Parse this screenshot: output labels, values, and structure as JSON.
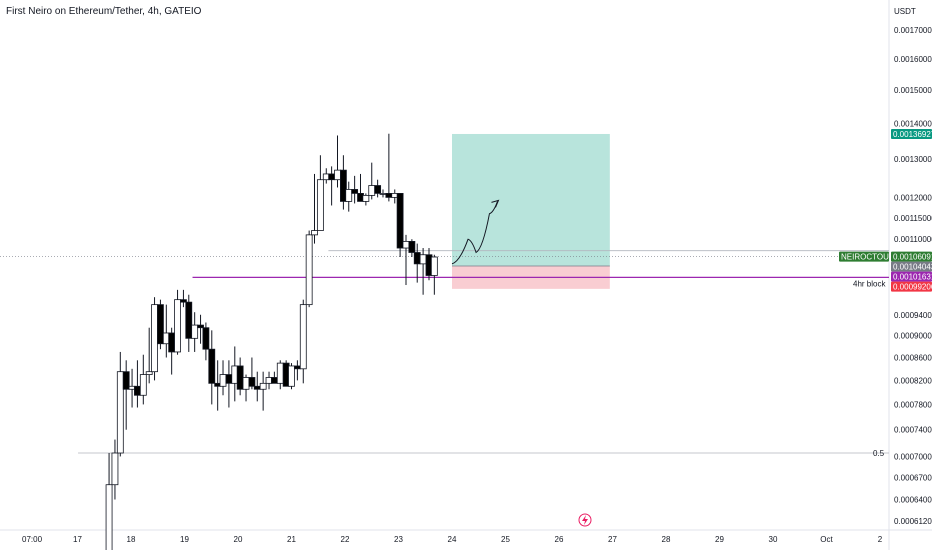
{
  "title": "First Neiro on Ethereum/Tether, 4h, GATEIO",
  "colors": {
    "up_fill": "#ffffff",
    "down_fill": "#000000",
    "wick": "#131722",
    "target_zone": "#b8e4dc",
    "stop_zone": "#f9cdd2",
    "horizontal_level": "#9c27b0",
    "fib_line": "#b2b5be",
    "grid_border": "#e0e3eb",
    "price_tag_green": "#2e7d32",
    "price_tag_teal": "#089981",
    "price_tag_purple": "#9c27b0",
    "price_tag_red": "#f23645",
    "price_tag_gray": "#787b86"
  },
  "chart_data": {
    "type": "candlestick",
    "currency": "USDT",
    "scale": "log",
    "y_range": [
      0.00059,
      0.00175
    ],
    "y_ticks": [
      "0.00170000",
      "0.00160000",
      "0.00150000",
      "0.00140000",
      "0.00130000",
      "0.00120000",
      "0.00115000",
      "0.00110000",
      "0.00094000",
      "0.00090000",
      "0.00086000",
      "0.00082000",
      "0.00078000",
      "0.00074000",
      "0.00070000",
      "0.00067000",
      "0.00064000",
      "0.00061200"
    ],
    "x_labels": [
      "07:00",
      "17",
      "18",
      "19",
      "20",
      "21",
      "22",
      "23",
      "24",
      "25",
      "26",
      "27",
      "28",
      "29",
      "30",
      "Oct",
      "2"
    ],
    "x_domain": [
      -1.1,
      8.95
    ],
    "grid": false,
    "candles": [
      {
        "t": -0.41,
        "o": 0.000575,
        "h": 0.000705,
        "l": 0.000575,
        "c": 0.00066
      },
      {
        "t": -0.3,
        "o": 0.00066,
        "h": 0.000725,
        "l": 0.00064,
        "c": 0.000705
      },
      {
        "t": -0.2,
        "o": 0.000705,
        "h": 0.00087,
        "l": 0.0007,
        "c": 0.000835
      },
      {
        "t": -0.09,
        "o": 0.000835,
        "h": 0.000855,
        "l": 0.00074,
        "c": 0.000805
      },
      {
        "t": 0.02,
        "o": 0.000805,
        "h": 0.00084,
        "l": 0.000775,
        "c": 0.00081
      },
      {
        "t": 0.12,
        "o": 0.00081,
        "h": 0.000855,
        "l": 0.000775,
        "c": 0.000795
      },
      {
        "t": 0.23,
        "o": 0.000795,
        "h": 0.000865,
        "l": 0.00078,
        "c": 0.00083
      },
      {
        "t": 0.34,
        "o": 0.00083,
        "h": 0.000915,
        "l": 0.000815,
        "c": 0.000835
      },
      {
        "t": 0.44,
        "o": 0.000835,
        "h": 0.000975,
        "l": 0.00082,
        "c": 0.00096
      },
      {
        "t": 0.55,
        "o": 0.00096,
        "h": 0.00097,
        "l": 0.000875,
        "c": 0.000885
      },
      {
        "t": 0.66,
        "o": 0.000885,
        "h": 0.00096,
        "l": 0.00086,
        "c": 0.000905
      },
      {
        "t": 0.76,
        "o": 0.000905,
        "h": 0.000915,
        "l": 0.00083,
        "c": 0.00087
      },
      {
        "t": 0.87,
        "o": 0.00087,
        "h": 0.00099,
        "l": 0.000865,
        "c": 0.00097
      },
      {
        "t": 0.98,
        "o": 0.00097,
        "h": 0.00099,
        "l": 0.000955,
        "c": 0.000965
      },
      {
        "t": 1.08,
        "o": 0.000965,
        "h": 0.00098,
        "l": 0.00087,
        "c": 0.000895
      },
      {
        "t": 1.19,
        "o": 0.000895,
        "h": 0.000945,
        "l": 0.00087,
        "c": 0.00092
      },
      {
        "t": 1.3,
        "o": 0.00092,
        "h": 0.00094,
        "l": 0.000885,
        "c": 0.000915
      },
      {
        "t": 1.4,
        "o": 0.000915,
        "h": 0.000925,
        "l": 0.000855,
        "c": 0.000875
      },
      {
        "t": 1.51,
        "o": 0.000875,
        "h": 0.00091,
        "l": 0.00078,
        "c": 0.000815
      },
      {
        "t": 1.62,
        "o": 0.000815,
        "h": 0.000855,
        "l": 0.00077,
        "c": 0.00081
      },
      {
        "t": 1.72,
        "o": 0.00081,
        "h": 0.000855,
        "l": 0.000795,
        "c": 0.00083
      },
      {
        "t": 1.83,
        "o": 0.00083,
        "h": 0.000855,
        "l": 0.000775,
        "c": 0.000815
      },
      {
        "t": 1.94,
        "o": 0.000815,
        "h": 0.00088,
        "l": 0.000785,
        "c": 0.000845
      },
      {
        "t": 2.04,
        "o": 0.000845,
        "h": 0.00086,
        "l": 0.000795,
        "c": 0.000805
      },
      {
        "t": 2.15,
        "o": 0.000805,
        "h": 0.00083,
        "l": 0.000785,
        "c": 0.000825
      },
      {
        "t": 2.26,
        "o": 0.000825,
        "h": 0.00086,
        "l": 0.000805,
        "c": 0.00081
      },
      {
        "t": 2.36,
        "o": 0.00081,
        "h": 0.000835,
        "l": 0.000785,
        "c": 0.000805
      },
      {
        "t": 2.47,
        "o": 0.000805,
        "h": 0.000835,
        "l": 0.00077,
        "c": 0.000815
      },
      {
        "t": 2.58,
        "o": 0.000815,
        "h": 0.000835,
        "l": 0.000805,
        "c": 0.000825
      },
      {
        "t": 2.68,
        "o": 0.000825,
        "h": 0.000835,
        "l": 0.000815,
        "c": 0.000815
      },
      {
        "t": 2.79,
        "o": 0.000815,
        "h": 0.000855,
        "l": 0.000805,
        "c": 0.00085
      },
      {
        "t": 2.9,
        "o": 0.00085,
        "h": 0.000855,
        "l": 0.00081,
        "c": 0.00081
      },
      {
        "t": 3.0,
        "o": 0.00081,
        "h": 0.00085,
        "l": 0.000805,
        "c": 0.000845
      },
      {
        "t": 3.11,
        "o": 0.000845,
        "h": 0.000855,
        "l": 0.00082,
        "c": 0.00084
      },
      {
        "t": 3.22,
        "o": 0.00084,
        "h": 0.00097,
        "l": 0.000815,
        "c": 0.00096
      },
      {
        "t": 3.33,
        "o": 0.00096,
        "h": 0.00112,
        "l": 0.000955,
        "c": 0.00111
      },
      {
        "t": 3.43,
        "o": 0.00111,
        "h": 0.00126,
        "l": 0.00109,
        "c": 0.00112
      },
      {
        "t": 3.54,
        "o": 0.00112,
        "h": 0.00131,
        "l": 0.00112,
        "c": 0.001245
      },
      {
        "t": 3.65,
        "o": 0.001245,
        "h": 0.001275,
        "l": 0.001235,
        "c": 0.00126
      },
      {
        "t": 3.75,
        "o": 0.00126,
        "h": 0.00128,
        "l": 0.00118,
        "c": 0.001245
      },
      {
        "t": 3.86,
        "o": 0.001245,
        "h": 0.001365,
        "l": 0.001225,
        "c": 0.00127
      },
      {
        "t": 3.97,
        "o": 0.00127,
        "h": 0.00131,
        "l": 0.00117,
        "c": 0.00119
      },
      {
        "t": 4.07,
        "o": 0.00119,
        "h": 0.00124,
        "l": 0.001165,
        "c": 0.00122
      },
      {
        "t": 4.18,
        "o": 0.00122,
        "h": 0.001255,
        "l": 0.001185,
        "c": 0.00121
      },
      {
        "t": 4.29,
        "o": 0.00121,
        "h": 0.00126,
        "l": 0.00119,
        "c": 0.00119
      },
      {
        "t": 4.39,
        "o": 0.00119,
        "h": 0.00121,
        "l": 0.00118,
        "c": 0.001205
      },
      {
        "t": 4.5,
        "o": 0.001205,
        "h": 0.00129,
        "l": 0.001195,
        "c": 0.00123
      },
      {
        "t": 4.61,
        "o": 0.00123,
        "h": 0.001245,
        "l": 0.0012,
        "c": 0.00121
      },
      {
        "t": 4.71,
        "o": 0.00121,
        "h": 0.00122,
        "l": 0.0012,
        "c": 0.00121
      },
      {
        "t": 4.82,
        "o": 0.00121,
        "h": 0.00137,
        "l": 0.00119,
        "c": 0.0012
      },
      {
        "t": 4.93,
        "o": 0.0012,
        "h": 0.00122,
        "l": 0.001185,
        "c": 0.00121
      },
      {
        "t": 5.03,
        "o": 0.00121,
        "h": 0.00121,
        "l": 0.00106,
        "c": 0.00108
      },
      {
        "t": 5.14,
        "o": 0.00108,
        "h": 0.00111,
        "l": 0.001,
        "c": 0.001095
      },
      {
        "t": 5.25,
        "o": 0.001095,
        "h": 0.0011,
        "l": 0.00106,
        "c": 0.00107
      },
      {
        "t": 5.35,
        "o": 0.00107,
        "h": 0.00109,
        "l": 0.001005,
        "c": 0.001045
      },
      {
        "t": 5.46,
        "o": 0.001045,
        "h": 0.00108,
        "l": 0.00098,
        "c": 0.001065
      },
      {
        "t": 5.57,
        "o": 0.001065,
        "h": 0.00108,
        "l": 0.00101,
        "c": 0.00102
      },
      {
        "t": 5.67,
        "o": 0.00102,
        "h": 0.001065,
        "l": 0.00098,
        "c": 0.00106
      }
    ],
    "levels": [
      {
        "name": "4hr block",
        "price": 0.001016,
        "from_t": 1.15,
        "to_t": 8.95
      },
      {
        "name": "0.5",
        "price": 0.000705,
        "from_t": -0.99,
        "to_t": 8.95
      },
      {
        "name": "0.5",
        "price": 0.001074,
        "from_t": 3.69,
        "to_t": 8.95
      }
    ],
    "position": {
      "entry": 0.00104043,
      "target": 0.00136927,
      "stop": 0.00099206,
      "from_t": 6.0,
      "to_t": 8.95
    },
    "projection": {
      "points": [
        [
          6.0,
          0.001045
        ],
        [
          6.3,
          0.0011
        ],
        [
          6.45,
          0.00107
        ],
        [
          6.7,
          0.00116
        ],
        [
          6.85,
          0.00119
        ]
      ]
    },
    "price_tags": [
      {
        "label": "USDT",
        "price": 0.00175,
        "style": "plain"
      },
      {
        "label": "0.00136927",
        "price": 0.00136927,
        "style": "teal"
      },
      {
        "label": "NEIROCTOUSDT",
        "price": 0.00106091,
        "style": "green"
      },
      {
        "label": "0.00106091",
        "price": 0.00106091,
        "style": "green"
      },
      {
        "label": "0.00104043",
        "price": 0.00104043,
        "style": "gray"
      },
      {
        "label": "0.00101631",
        "price": 0.00101631,
        "style": "purple"
      },
      {
        "label": "0.00099206",
        "price": 0.00099206,
        "style": "red"
      }
    ],
    "annotations": [
      {
        "text": "4hr block",
        "t": 9.15,
        "price": 0.001003
      },
      {
        "text": "0.5",
        "t": 9.15,
        "price": 0.000705
      }
    ]
  }
}
